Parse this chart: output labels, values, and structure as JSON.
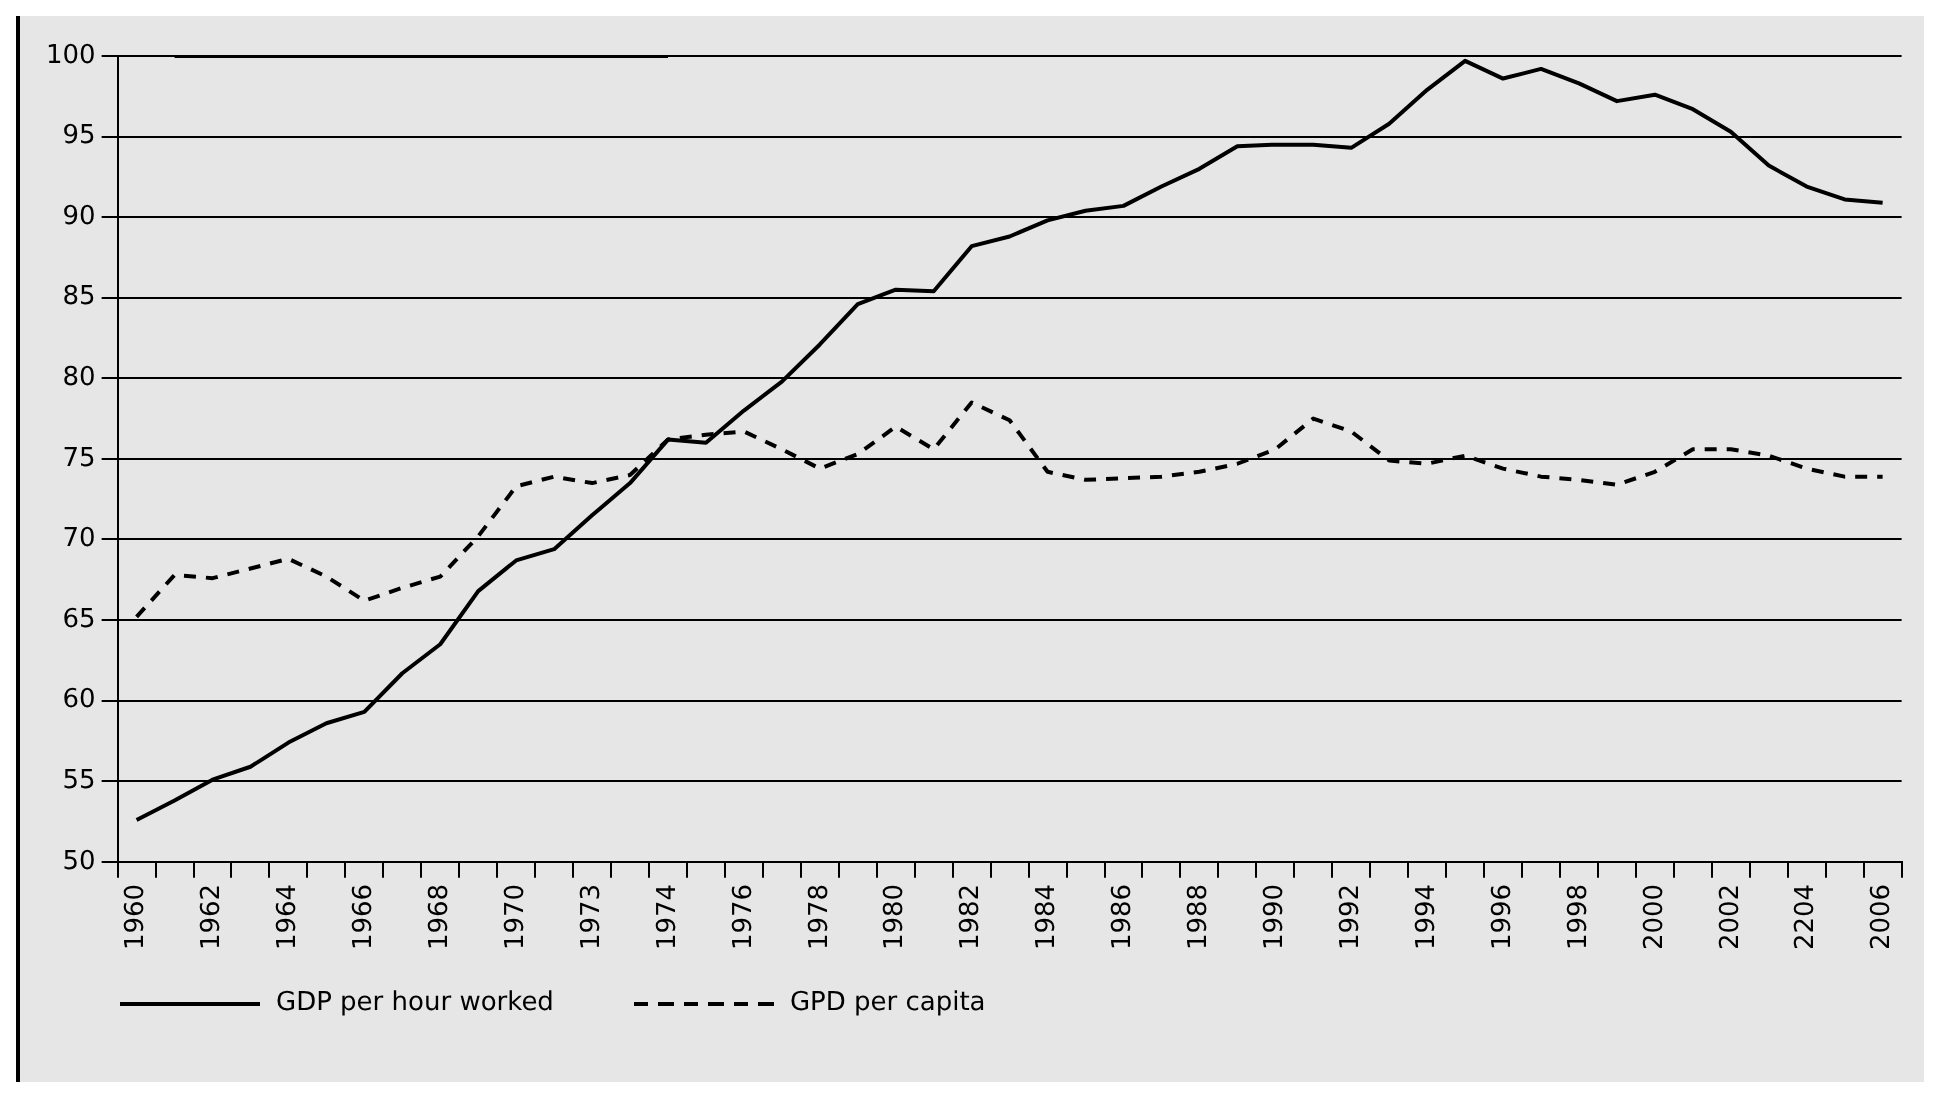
{
  "chart_data": {
    "type": "line",
    "categories": [
      "1960",
      null,
      "1962",
      null,
      "1964",
      null,
      "1966",
      null,
      "1968",
      null,
      "1970",
      null,
      "1973",
      null,
      "1974",
      null,
      "1976",
      null,
      "1978",
      null,
      "1980",
      null,
      "1982",
      null,
      "1984",
      null,
      "1986",
      null,
      "1988",
      null,
      "1990",
      null,
      "1992",
      null,
      "1994",
      null,
      "1996",
      null,
      "1998",
      null,
      "2000",
      null,
      "2002",
      null,
      "2204",
      null,
      "2006"
    ],
    "series": [
      {
        "name": "GDP per hour worked",
        "color": "#000000",
        "line_style": "solid",
        "values": [
          52.6,
          53.8,
          55.1,
          55.9,
          57.4,
          58.6,
          59.3,
          61.7,
          63.5,
          66.8,
          68.7,
          69.4,
          71.5,
          73.5,
          76.2,
          76.0,
          78.0,
          79.8,
          82.1,
          84.6,
          85.5,
          85.4,
          88.2,
          88.8,
          89.8,
          90.4,
          90.7,
          91.9,
          93.0,
          94.4,
          94.5,
          94.5,
          94.3,
          95.8,
          97.9,
          99.7,
          98.6,
          99.2,
          98.3,
          97.2,
          97.6,
          96.7,
          95.3,
          93.2,
          91.9,
          91.1,
          90.9
        ]
      },
      {
        "name": "GPD per capita",
        "color": "#000000",
        "line_style": "dashed",
        "values": [
          65.2,
          67.8,
          67.6,
          68.2,
          68.8,
          67.7,
          66.2,
          67.0,
          67.7,
          70.2,
          73.3,
          73.9,
          73.5,
          74.0,
          76.2,
          76.5,
          76.7,
          75.6,
          74.4,
          75.3,
          77.0,
          75.6,
          78.5,
          77.4,
          74.2,
          73.7,
          73.8,
          73.9,
          74.2,
          74.7,
          75.6,
          77.5,
          76.7,
          74.9,
          74.7,
          75.2,
          74.4,
          73.9,
          73.7,
          73.4,
          74.2,
          75.6,
          75.6,
          75.2,
          74.4,
          73.9,
          73.9
        ]
      },
      {
        "color": "#000000",
        "line_style": "solid",
        "values": [
          null,
          100,
          100,
          100,
          100,
          100,
          100,
          100,
          100,
          100,
          100,
          100,
          100,
          100,
          100,
          null,
          null,
          null,
          null,
          null,
          null,
          null,
          null,
          null,
          null,
          null,
          null,
          null,
          null,
          null,
          null,
          null,
          null,
          null,
          null,
          null,
          null,
          null,
          null,
          null,
          null,
          null,
          null,
          null,
          null,
          null,
          null
        ]
      }
    ],
    "ylim": [
      50,
      100
    ],
    "yticks": [
      50,
      55,
      60,
      65,
      70,
      75,
      80,
      85,
      90,
      95,
      100
    ],
    "grid": "y",
    "marker": "none",
    "legend": "bottom left"
  }
}
